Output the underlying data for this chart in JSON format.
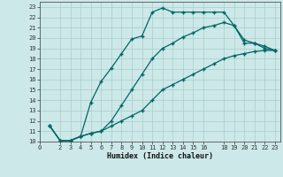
{
  "xlabel": "Humidex (Indice chaleur)",
  "background_color": "#cce8e8",
  "grid_color": "#aacccc",
  "line_color": "#006666",
  "xlim": [
    0,
    23.5
  ],
  "ylim": [
    10,
    23.5
  ],
  "xticks": [
    0,
    2,
    3,
    4,
    5,
    6,
    7,
    8,
    9,
    10,
    11,
    12,
    13,
    14,
    15,
    16,
    18,
    19,
    20,
    21,
    22,
    23
  ],
  "yticks": [
    10,
    11,
    12,
    13,
    14,
    15,
    16,
    17,
    18,
    19,
    20,
    21,
    22,
    23
  ],
  "line1_x": [
    1,
    2,
    3,
    4,
    5,
    6,
    7,
    8,
    9,
    10,
    11,
    12,
    13,
    14,
    15,
    16,
    17,
    18,
    19,
    20,
    21,
    22,
    23
  ],
  "line1_y": [
    11.5,
    10.1,
    10.1,
    10.5,
    13.8,
    15.8,
    17.1,
    18.5,
    19.9,
    20.2,
    22.5,
    22.9,
    22.5,
    22.5,
    22.5,
    22.5,
    22.5,
    22.5,
    21.2,
    19.5,
    19.5,
    19.0,
    18.8
  ],
  "line2_x": [
    1,
    2,
    3,
    4,
    5,
    6,
    7,
    8,
    9,
    10,
    11,
    12,
    13,
    14,
    15,
    16,
    17,
    18,
    19,
    20,
    21,
    22,
    23
  ],
  "line2_y": [
    11.5,
    10.1,
    10.1,
    10.5,
    10.8,
    11.0,
    12.0,
    13.5,
    15.0,
    16.5,
    18.0,
    19.0,
    19.5,
    20.1,
    20.5,
    21.0,
    21.2,
    21.5,
    21.2,
    19.8,
    19.5,
    19.2,
    18.8
  ],
  "line3_x": [
    1,
    2,
    3,
    4,
    5,
    6,
    7,
    8,
    9,
    10,
    11,
    12,
    13,
    14,
    15,
    16,
    17,
    18,
    19,
    20,
    21,
    22,
    23
  ],
  "line3_y": [
    11.5,
    10.1,
    10.1,
    10.5,
    10.8,
    11.0,
    11.5,
    12.0,
    12.5,
    13.0,
    14.0,
    15.0,
    15.5,
    16.0,
    16.5,
    17.0,
    17.5,
    18.0,
    18.3,
    18.5,
    18.7,
    18.8,
    18.8
  ]
}
